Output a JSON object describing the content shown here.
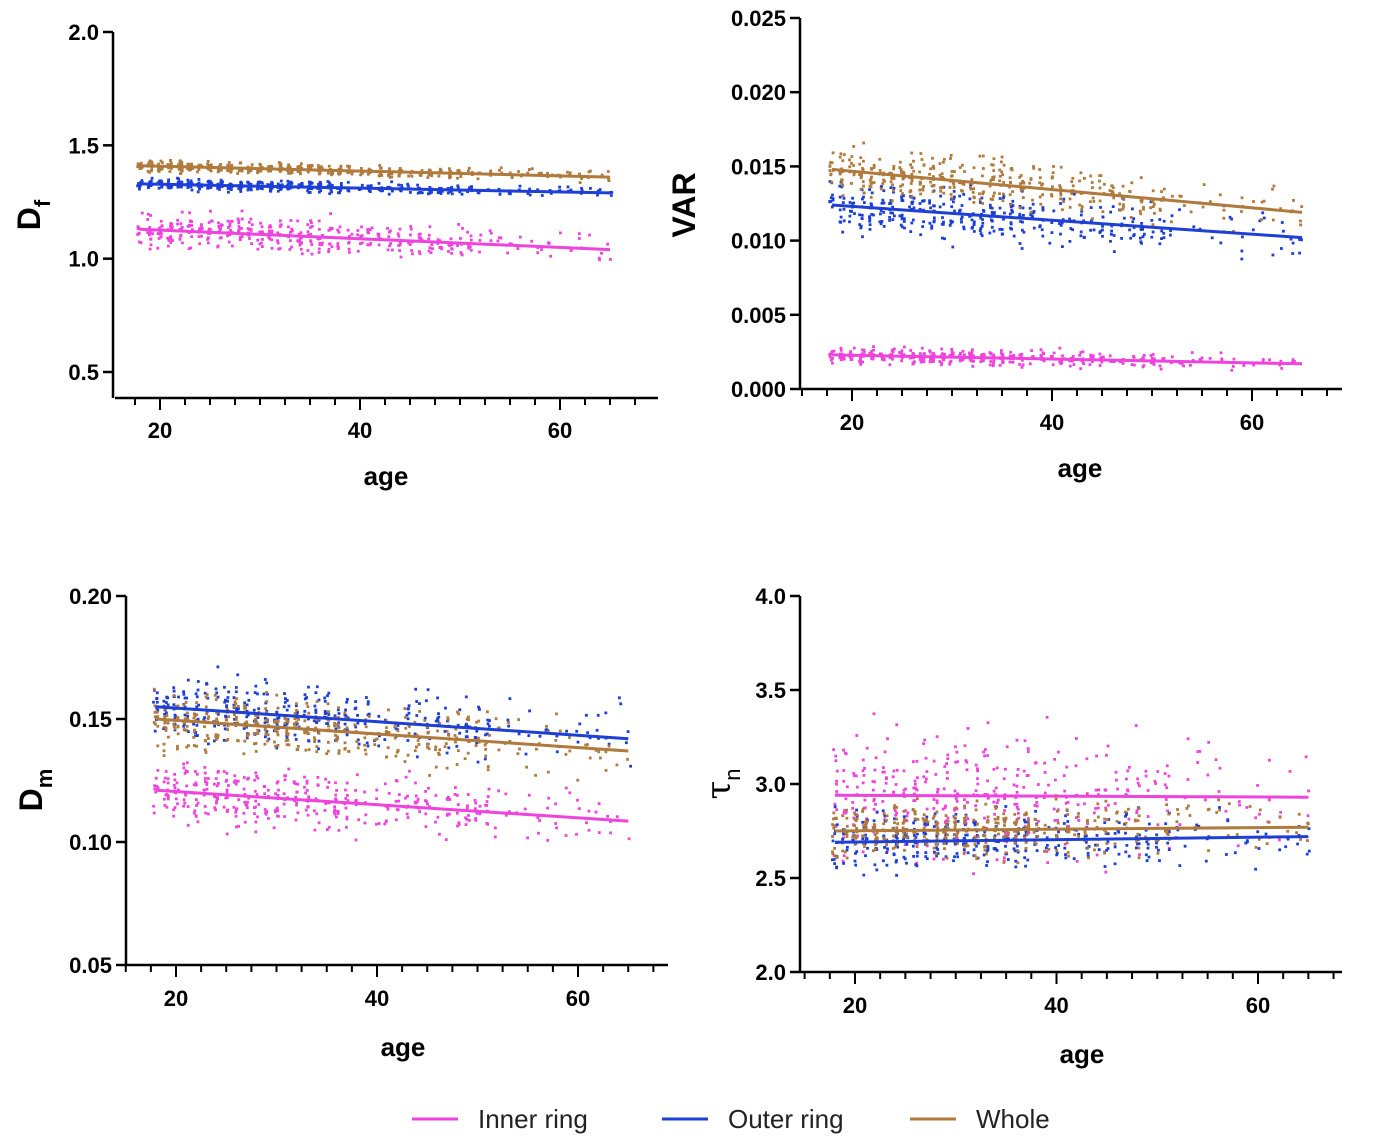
{
  "legend": {
    "items": [
      {
        "label": "Inner ring",
        "color": "#ee44dd"
      },
      {
        "label": "Outer ring",
        "color": "#1d3fd6"
      },
      {
        "label": "Whole",
        "color": "#b07a3c"
      }
    ]
  },
  "chart_data": [
    {
      "id": "df",
      "type": "scatter",
      "xlabel": "age",
      "ylabel": {
        "main": "D",
        "sub": "f"
      },
      "xlim": [
        15,
        70
      ],
      "ylim": [
        0.42,
        2.0
      ],
      "xticks": [
        20,
        40,
        60
      ],
      "yticks": [
        0.5,
        1.0,
        1.5,
        2.0
      ],
      "ytick_labels": [
        "0.5",
        "1.0",
        "1.5",
        "2.0"
      ],
      "series": [
        {
          "name": "Inner ring",
          "color": "#ee44dd",
          "fit": {
            "x": [
              18,
              65
            ],
            "y": [
              1.13,
              1.04
            ]
          },
          "spread": 0.07,
          "seed": 11
        },
        {
          "name": "Outer ring",
          "color": "#1d3fd6",
          "fit": {
            "x": [
              18,
              65
            ],
            "y": [
              1.33,
              1.29
            ]
          },
          "spread": 0.022,
          "seed": 12
        },
        {
          "name": "Whole",
          "color": "#b07a3c",
          "fit": {
            "x": [
              18,
              65
            ],
            "y": [
              1.41,
              1.36
            ]
          },
          "spread": 0.022,
          "seed": 13
        }
      ]
    },
    {
      "id": "var",
      "type": "scatter",
      "xlabel": "age",
      "ylabel": {
        "main": "VAR",
        "sub": ""
      },
      "xlim": [
        15,
        70
      ],
      "ylim": [
        0.0,
        0.025
      ],
      "xticks": [
        20,
        40,
        60
      ],
      "yticks": [
        0.0,
        0.005,
        0.01,
        0.015,
        0.02,
        0.025
      ],
      "ytick_labels": [
        "0.000",
        "0.005",
        "0.010",
        "0.015",
        "0.020",
        "0.025"
      ],
      "series": [
        {
          "name": "Inner ring",
          "color": "#ee44dd",
          "fit": {
            "x": [
              18,
              65
            ],
            "y": [
              0.0023,
              0.0017
            ]
          },
          "spread": 0.0005,
          "seed": 21
        },
        {
          "name": "Outer ring",
          "color": "#1d3fd6",
          "fit": {
            "x": [
              18,
              65
            ],
            "y": [
              0.0124,
              0.0102
            ]
          },
          "spread": 0.0016,
          "seed": 22
        },
        {
          "name": "Whole",
          "color": "#b07a3c",
          "fit": {
            "x": [
              18,
              65
            ],
            "y": [
              0.0148,
              0.0119
            ]
          },
          "spread": 0.0015,
          "seed": 23
        }
      ]
    },
    {
      "id": "dm",
      "type": "scatter",
      "xlabel": "age",
      "ylabel": {
        "main": "D",
        "sub": "m"
      },
      "xlim": [
        15,
        70
      ],
      "ylim": [
        0.05,
        0.2
      ],
      "xticks": [
        20,
        40,
        60
      ],
      "yticks": [
        0.05,
        0.1,
        0.15,
        0.2
      ],
      "ytick_labels": [
        "0.05",
        "0.10",
        "0.15",
        "0.20"
      ],
      "series": [
        {
          "name": "Inner ring",
          "color": "#ee44dd",
          "fit": {
            "x": [
              18,
              65
            ],
            "y": [
              0.121,
              0.1085
            ]
          },
          "spread": 0.011,
          "seed": 31
        },
        {
          "name": "Outer ring",
          "color": "#1d3fd6",
          "fit": {
            "x": [
              18,
              65
            ],
            "y": [
              0.155,
              0.142
            ]
          },
          "spread": 0.012,
          "seed": 32
        },
        {
          "name": "Whole",
          "color": "#b07a3c",
          "fit": {
            "x": [
              18,
              65
            ],
            "y": [
              0.15,
              0.137
            ]
          },
          "spread": 0.011,
          "seed": 33
        }
      ]
    },
    {
      "id": "tau",
      "type": "scatter",
      "xlabel": "age",
      "ylabel": {
        "main": "τ",
        "sub": "n"
      },
      "xlim": [
        15,
        70
      ],
      "ylim": [
        2.0,
        4.0
      ],
      "xticks": [
        20,
        40,
        60
      ],
      "yticks": [
        2.0,
        2.5,
        3.0,
        3.5,
        4.0
      ],
      "ytick_labels": [
        "2.0",
        "2.5",
        "3.0",
        "3.5",
        "4.0"
      ],
      "series": [
        {
          "name": "Inner ring",
          "color": "#ee44dd",
          "fit": {
            "x": [
              18,
              65
            ],
            "y": [
              2.94,
              2.93
            ]
          },
          "spread": 0.3,
          "seed": 41
        },
        {
          "name": "Outer ring",
          "color": "#1d3fd6",
          "fit": {
            "x": [
              18,
              65
            ],
            "y": [
              2.69,
              2.72
            ]
          },
          "spread": 0.14,
          "seed": 42
        },
        {
          "name": "Whole",
          "color": "#b07a3c",
          "fit": {
            "x": [
              18,
              65
            ],
            "y": [
              2.75,
              2.77
            ]
          },
          "spread": 0.13,
          "seed": 43
        }
      ]
    }
  ]
}
